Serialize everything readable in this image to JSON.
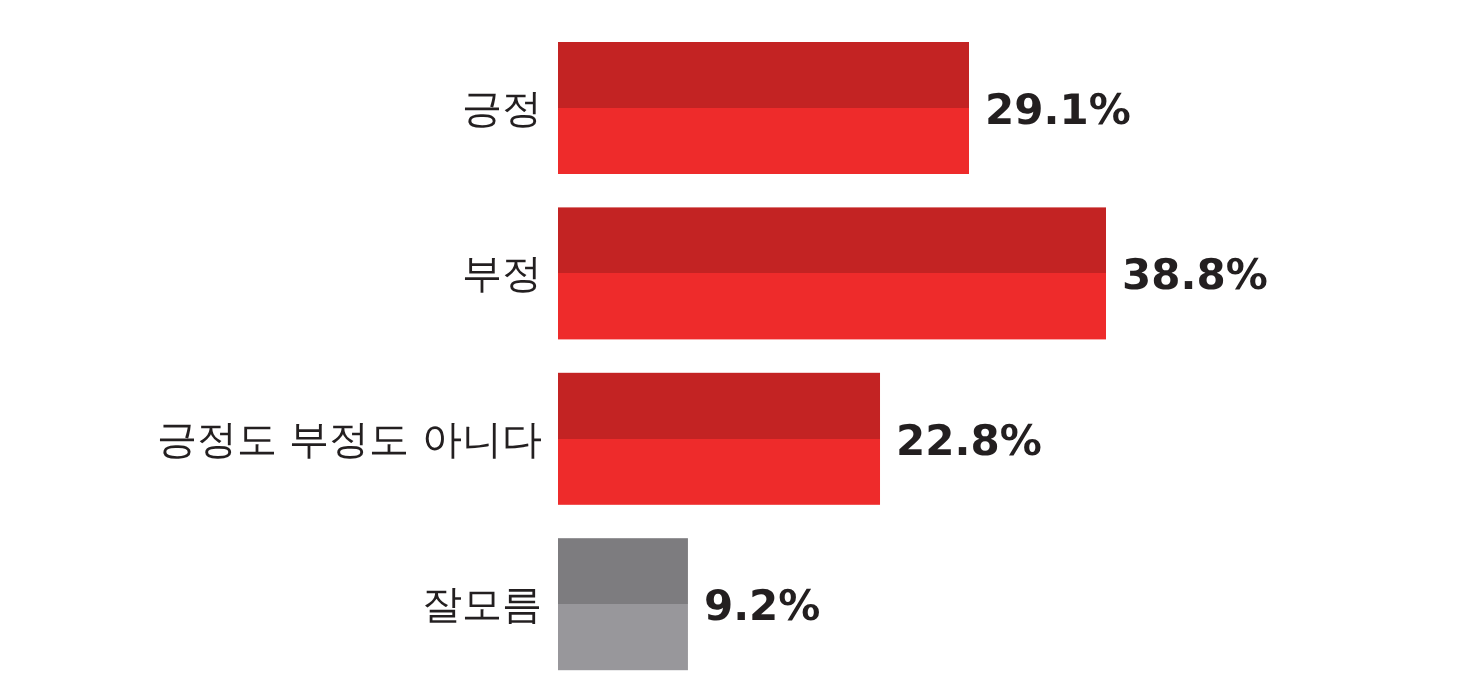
{
  "chart_data": {
    "type": "bar",
    "orientation": "horizontal",
    "categories": [
      "긍정",
      "부정",
      "긍정도 부정도 아니다",
      "잘모름"
    ],
    "values": [
      29.1,
      38.8,
      22.8,
      9.2
    ],
    "colors": [
      "#ee2b2b",
      "#ee2b2b",
      "#ee2b2b",
      "#98979b"
    ],
    "value_labels": [
      "29.1%",
      "38.8%",
      "22.8%",
      "9.2%"
    ]
  }
}
